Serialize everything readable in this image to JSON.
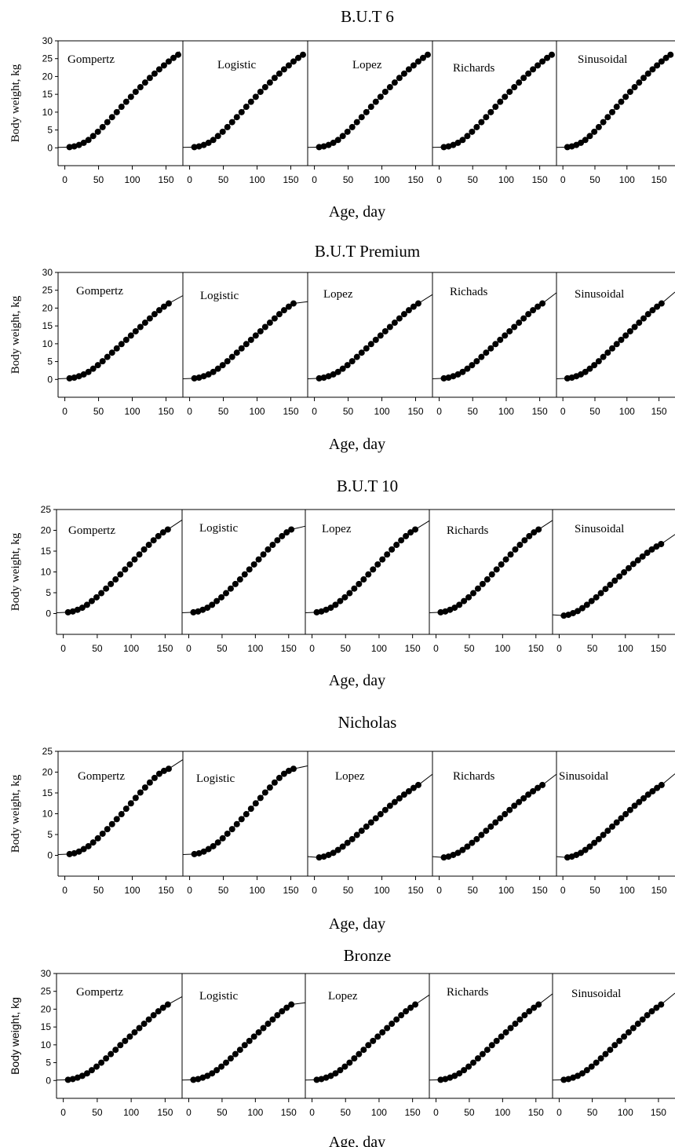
{
  "chart_data": [
    {
      "type": "scatter",
      "title": "B.U.T 6",
      "xlabel": "Age, day",
      "ylabel": "Body weight, kg",
      "ylim": [
        -5,
        30
      ],
      "yticks": [
        0,
        5,
        10,
        15,
        20,
        25,
        30
      ],
      "xlim": [
        -10,
        175
      ],
      "xticks": [
        0,
        50,
        100,
        150
      ],
      "panels": [
        {
          "label": "Gompertz",
          "x_end": 170,
          "y_end": 27.0
        },
        {
          "label": "Logistic",
          "x_end": 170,
          "y_end": 25.6
        },
        {
          "label": "Lopez",
          "x_end": 170,
          "y_end": 26.8
        },
        {
          "label": "Richards",
          "x_end": 170,
          "y_end": 26.7
        },
        {
          "label": "Sinusoidal",
          "x_end": 170,
          "y_end": 26.8
        }
      ],
      "series": [
        {
          "x": [
            7,
            14,
            21,
            28,
            35,
            42,
            49,
            56,
            63,
            70,
            77,
            84,
            91,
            98,
            105,
            112,
            119,
            126,
            133,
            140,
            147,
            154,
            161,
            168
          ],
          "y": [
            0.2,
            0.4,
            0.8,
            1.4,
            2.2,
            3.3,
            4.5,
            5.8,
            7.2,
            8.6,
            10.0,
            11.5,
            12.9,
            14.3,
            15.7,
            17.0,
            18.3,
            19.6,
            20.8,
            22.0,
            23.1,
            24.2,
            25.2,
            26.1
          ]
        }
      ]
    },
    {
      "type": "scatter",
      "title": "B.U.T Premium",
      "xlabel": "Age, day",
      "ylabel": "Body weight, kg",
      "ylim": [
        -5,
        30
      ],
      "yticks": [
        0,
        5,
        10,
        15,
        20,
        25,
        30
      ],
      "xlim": [
        -10,
        175
      ],
      "xticks": [
        0,
        50,
        100,
        150
      ],
      "panels": [
        {
          "label": "Gompertz",
          "x_end": 175,
          "y_end": 23.5
        },
        {
          "label": "Logistic",
          "x_end": 175,
          "y_end": 21.8
        },
        {
          "label": "Lopez",
          "x_end": 175,
          "y_end": 23.8
        },
        {
          "label": "Richads",
          "x_end": 175,
          "y_end": 24.3
        },
        {
          "label": "Sinusoidal",
          "x_end": 175,
          "y_end": 24.5
        }
      ],
      "series": [
        {
          "x": [
            7,
            14,
            21,
            28,
            35,
            42,
            49,
            56,
            63,
            70,
            77,
            84,
            91,
            98,
            105,
            112,
            119,
            126,
            133,
            140,
            147,
            154
          ],
          "y": [
            0.3,
            0.5,
            0.9,
            1.4,
            2.1,
            3.0,
            4.0,
            5.1,
            6.3,
            7.5,
            8.7,
            9.9,
            11.1,
            12.3,
            13.5,
            14.7,
            15.9,
            17.1,
            18.3,
            19.4,
            20.4,
            21.3
          ]
        }
      ]
    },
    {
      "type": "scatter",
      "title": "B.U.T 10",
      "xlabel": "Age, day",
      "ylabel": "Body weight, kg",
      "ylim": [
        -5,
        25
      ],
      "yticks": [
        0,
        5,
        10,
        15,
        20,
        25
      ],
      "xlim": [
        -10,
        175
      ],
      "xticks": [
        0,
        50,
        100,
        150
      ],
      "panels": [
        {
          "label": "Gompertz",
          "x_end": 175,
          "y_end": 22.5
        },
        {
          "label": "Logistic",
          "x_end": 175,
          "y_end": 21.0
        },
        {
          "label": "Lopez",
          "x_end": 175,
          "y_end": 22.3
        },
        {
          "label": "Richards",
          "x_end": 175,
          "y_end": 22.4
        },
        {
          "label": "Sinusoidal",
          "x_end": 175,
          "y_end": 19.0
        }
      ],
      "series": [
        {
          "x": [
            7,
            14,
            21,
            28,
            35,
            42,
            49,
            56,
            63,
            70,
            77,
            84,
            91,
            98,
            105,
            112,
            119,
            126,
            133,
            140,
            147,
            154
          ],
          "y": [
            0.3,
            0.5,
            0.9,
            1.4,
            2.1,
            3.0,
            3.9,
            4.9,
            6.0,
            7.1,
            8.2,
            9.4,
            10.6,
            11.8,
            13.0,
            14.2,
            15.4,
            16.5,
            17.6,
            18.6,
            19.5,
            20.2
          ]
        },
        {
          "name_panel": "Sinusoidal",
          "x": [
            7,
            14,
            21,
            28,
            35,
            42,
            49,
            56,
            63,
            70,
            77,
            84,
            91,
            98,
            105,
            112,
            119,
            126,
            133,
            140,
            147,
            154
          ],
          "y": [
            -0.5,
            -0.3,
            0.1,
            0.6,
            1.3,
            2.1,
            3.0,
            3.9,
            4.9,
            5.9,
            6.9,
            7.9,
            8.9,
            9.9,
            10.9,
            11.9,
            12.8,
            13.7,
            14.6,
            15.4,
            16.1,
            16.7
          ]
        }
      ]
    },
    {
      "type": "scatter",
      "title": "Nicholas",
      "xlabel": "Age, day",
      "ylabel": "Body weight, kg",
      "ylim": [
        -5,
        25
      ],
      "yticks": [
        0,
        5,
        10,
        15,
        20,
        25
      ],
      "xlim": [
        -10,
        175
      ],
      "xticks": [
        0,
        50,
        100,
        150
      ],
      "panels": [
        {
          "label": "Gompertz",
          "x_end": 175,
          "y_end": 23.0
        },
        {
          "label": "Logistic",
          "x_end": 175,
          "y_end": 21.5
        },
        {
          "label": "Lopez",
          "x_end": 175,
          "y_end": 19.5
        },
        {
          "label": "Richards",
          "x_end": 175,
          "y_end": 19.5
        },
        {
          "label": "Sinusoidal",
          "x_end": 175,
          "y_end": 19.6
        }
      ],
      "series": [
        {
          "x": [
            7,
            14,
            21,
            28,
            35,
            42,
            49,
            56,
            63,
            70,
            77,
            84,
            91,
            98,
            105,
            112,
            119,
            126,
            133,
            140,
            147,
            154
          ],
          "y": [
            0.3,
            0.5,
            0.9,
            1.5,
            2.2,
            3.1,
            4.1,
            5.2,
            6.3,
            7.5,
            8.7,
            9.9,
            11.2,
            12.5,
            13.8,
            15.1,
            16.3,
            17.5,
            18.6,
            19.6,
            20.3,
            20.8
          ]
        },
        {
          "name_panel": "Lopez/Richards/Sinusoidal",
          "x": [
            7,
            14,
            21,
            28,
            35,
            42,
            49,
            56,
            63,
            70,
            77,
            84,
            91,
            98,
            105,
            112,
            119,
            126,
            133,
            140,
            147,
            154
          ],
          "y": [
            -0.5,
            -0.3,
            0.1,
            0.6,
            1.3,
            2.1,
            3.0,
            3.9,
            4.9,
            5.9,
            6.9,
            7.9,
            8.9,
            9.9,
            10.9,
            11.9,
            12.8,
            13.7,
            14.6,
            15.4,
            16.2,
            16.9
          ]
        }
      ]
    },
    {
      "type": "scatter",
      "title": "Bronze",
      "xlabel": "Age, day",
      "ylabel": "Body weight, kg",
      "ylim": [
        -5,
        30
      ],
      "yticks": [
        0,
        5,
        10,
        15,
        20,
        25,
        30
      ],
      "xlim": [
        -10,
        175
      ],
      "xticks": [
        0,
        50,
        100,
        150
      ],
      "panels": [
        {
          "label": "Gompertz",
          "x_end": 175,
          "y_end": 23.5
        },
        {
          "label": "Logistic",
          "x_end": 175,
          "y_end": 21.8
        },
        {
          "label": "Lopez",
          "x_end": 175,
          "y_end": 24.0
        },
        {
          "label": "Richards",
          "x_end": 175,
          "y_end": 24.3
        },
        {
          "label": "Sinusoidal",
          "x_end": 175,
          "y_end": 24.5
        }
      ],
      "series": [
        {
          "x": [
            7,
            14,
            21,
            28,
            35,
            42,
            49,
            56,
            63,
            70,
            77,
            84,
            91,
            98,
            105,
            112,
            119,
            126,
            133,
            140,
            147,
            154
          ],
          "y": [
            0.2,
            0.4,
            0.8,
            1.3,
            2.0,
            2.9,
            3.9,
            5.0,
            6.2,
            7.4,
            8.6,
            9.9,
            11.1,
            12.3,
            13.5,
            14.7,
            15.9,
            17.1,
            18.3,
            19.4,
            20.4,
            21.3
          ]
        }
      ]
    }
  ]
}
